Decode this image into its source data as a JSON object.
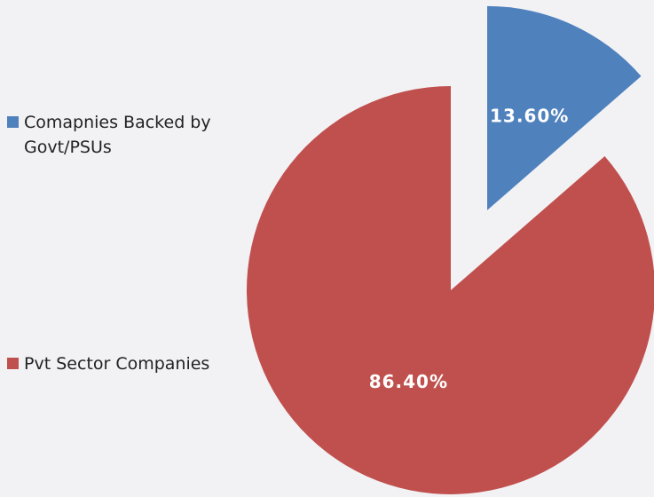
{
  "chart_data": {
    "type": "pie",
    "categories": [
      "Comapnies Backed by Govt/PSUs",
      "Pvt Sector Companies"
    ],
    "values": [
      13.6,
      86.4
    ],
    "value_labels": [
      "13.60%",
      "86.40%"
    ],
    "colors": [
      "#4f81bd",
      "#c0504d"
    ],
    "legend": "left"
  }
}
